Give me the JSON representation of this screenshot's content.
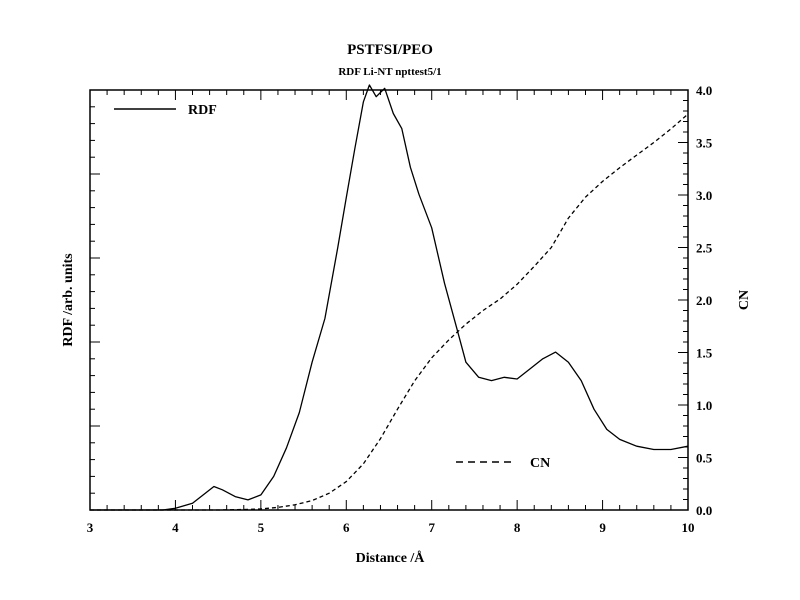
{
  "chart_data": {
    "type": "line",
    "title": "PSTFSI/PEO",
    "subtitle": "RDF Li-NT npttest5/1",
    "xlabel": "Distance /Å",
    "ylabel_left": "RDF /arb. units",
    "ylabel_right": "CN",
    "xlim": [
      3,
      10
    ],
    "ylim_right": [
      0,
      4
    ],
    "x_ticks": [
      "3",
      "4",
      "5",
      "6",
      "7",
      "8",
      "9",
      "10"
    ],
    "y_right_ticks": [
      "0.0",
      "0.5",
      "1.0",
      "1.5",
      "2.0",
      "2.5",
      "3.0",
      "3.5",
      "4.0"
    ],
    "grid": false,
    "legend_placement": "top-left and lower-right",
    "series": [
      {
        "name": "RDF",
        "axis": "left",
        "style": "solid",
        "x": [
          3.0,
          3.5,
          3.85,
          4.0,
          4.2,
          4.35,
          4.45,
          4.55,
          4.7,
          4.85,
          5.0,
          5.15,
          5.3,
          5.45,
          5.6,
          5.75,
          5.9,
          6.0,
          6.1,
          6.2,
          6.27,
          6.35,
          6.45,
          6.55,
          6.65,
          6.75,
          6.85,
          7.0,
          7.15,
          7.3,
          7.4,
          7.55,
          7.7,
          7.85,
          8.0,
          8.15,
          8.3,
          8.45,
          8.6,
          8.75,
          8.9,
          9.05,
          9.2,
          9.4,
          9.6,
          9.8,
          10.0
        ],
        "values": [
          0.0,
          0.0,
          0.0,
          0.01,
          0.04,
          0.1,
          0.14,
          0.12,
          0.08,
          0.06,
          0.09,
          0.2,
          0.37,
          0.58,
          0.88,
          1.14,
          1.56,
          1.86,
          2.15,
          2.43,
          2.53,
          2.46,
          2.51,
          2.36,
          2.27,
          2.04,
          1.88,
          1.68,
          1.35,
          1.07,
          0.88,
          0.79,
          0.77,
          0.79,
          0.78,
          0.84,
          0.9,
          0.94,
          0.88,
          0.77,
          0.6,
          0.48,
          0.42,
          0.38,
          0.36,
          0.36,
          0.38
        ]
      },
      {
        "name": "CN",
        "axis": "right",
        "style": "dashed",
        "x": [
          3.0,
          3.5,
          4.0,
          4.5,
          4.8,
          5.0,
          5.2,
          5.4,
          5.6,
          5.8,
          6.0,
          6.2,
          6.4,
          6.6,
          6.8,
          7.0,
          7.2,
          7.4,
          7.6,
          7.8,
          8.0,
          8.2,
          8.4,
          8.6,
          8.8,
          9.0,
          9.2,
          9.4,
          9.6,
          9.8,
          10.0
        ],
        "values": [
          0.0,
          0.0,
          0.0,
          0.0,
          0.005,
          0.01,
          0.025,
          0.05,
          0.09,
          0.16,
          0.27,
          0.44,
          0.68,
          0.96,
          1.23,
          1.45,
          1.62,
          1.77,
          1.9,
          2.01,
          2.15,
          2.32,
          2.5,
          2.78,
          2.98,
          3.13,
          3.26,
          3.38,
          3.5,
          3.63,
          3.77
        ]
      }
    ]
  }
}
